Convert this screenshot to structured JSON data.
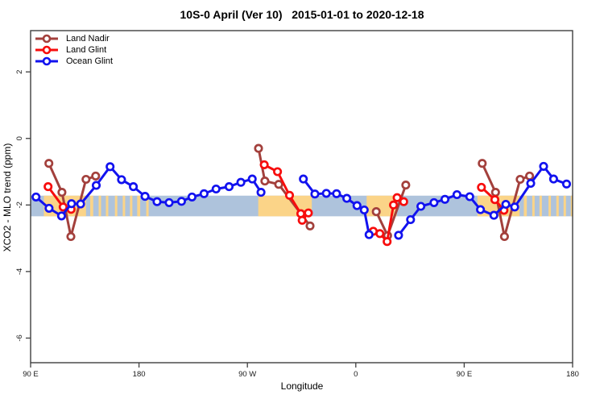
{
  "chart_data": {
    "type": "line",
    "title": "10S-0 April (Ver 10)   2015-01-01 to 2020-12-18",
    "xlabel": "Longitude",
    "ylabel": "XCO2 - MLO trend (ppm)",
    "xlim": [
      90,
      540
    ],
    "ylim": [
      -6.74,
      3.24
    ],
    "grid": false,
    "legend_position": "top-left",
    "x_ticks": [
      {
        "value": 90,
        "label": "90 E"
      },
      {
        "value": 180,
        "label": "180"
      },
      {
        "value": 270,
        "label": "90 W"
      },
      {
        "value": 360,
        "label": "0"
      },
      {
        "value": 450,
        "label": "90 E"
      },
      {
        "value": 540,
        "label": "180"
      }
    ],
    "y_ticks": [
      {
        "value": 2,
        "label": "2"
      },
      {
        "value": 0,
        "label": "0"
      },
      {
        "value": -2,
        "label": "-2"
      },
      {
        "value": -4,
        "label": "-4"
      },
      {
        "value": -6,
        "label": "-6"
      }
    ],
    "reference_band": {
      "y_from": -1.72,
      "y_to": -2.34,
      "color": "#AEC3DC"
    },
    "land_patches_color": "#FBD488",
    "land_patches_lon": [
      [
        101,
        136
      ],
      [
        139.5,
        142
      ],
      [
        146.5,
        148.5
      ],
      [
        152.5,
        154.5
      ],
      [
        160,
        162
      ],
      [
        166.5,
        168.5
      ],
      [
        172.5,
        174.5
      ],
      [
        178.5,
        181
      ],
      [
        186,
        188
      ],
      [
        279,
        323.5
      ],
      [
        369,
        394
      ],
      [
        461,
        496
      ],
      [
        499.5,
        502
      ],
      [
        506.5,
        508.5
      ],
      [
        512.5,
        514.5
      ],
      [
        520,
        522
      ],
      [
        526.5,
        528.5
      ],
      [
        532.5,
        534.5
      ],
      [
        538.5,
        540
      ]
    ],
    "series": [
      {
        "name": "Land Nadir",
        "color": "#A3403C",
        "segments": [
          [
            [
              105.2,
              -0.75
            ],
            [
              116,
              -1.62
            ],
            [
              123.4,
              -2.95
            ],
            [
              136,
              -1.23
            ],
            [
              144,
              -1.13
            ]
          ],
          [
            [
              279.2,
              -0.3
            ],
            [
              284.5,
              -1.28
            ],
            [
              296,
              -1.38
            ],
            [
              322,
              -2.63
            ]
          ],
          [
            [
              377,
              -2.2
            ],
            [
              386.4,
              -2.92
            ],
            [
              401.5,
              -1.4
            ]
          ],
          [
            [
              465,
              -0.75
            ],
            [
              476,
              -1.62
            ],
            [
              483.4,
              -2.95
            ],
            [
              496.5,
              -1.23
            ],
            [
              504.3,
              -1.13
            ]
          ]
        ]
      },
      {
        "name": "Land Glint",
        "color": "#F70D0D",
        "segments": [
          [
            [
              104.5,
              -1.45
            ],
            [
              117,
              -2.06
            ],
            [
              123.6,
              -2.13
            ]
          ],
          [
            [
              284,
              -0.79
            ],
            [
              295,
              -1.0
            ],
            [
              305,
              -1.71
            ],
            [
              314.3,
              -2.26
            ],
            [
              315.5,
              -2.46
            ],
            [
              320.6,
              -2.24
            ]
          ],
          [
            [
              374.5,
              -2.79
            ],
            [
              380,
              -2.86
            ],
            [
              386,
              -3.1
            ],
            [
              391.3,
              -2.0
            ],
            [
              394.3,
              -1.78
            ],
            [
              399.8,
              -1.9
            ]
          ],
          [
            [
              464.3,
              -1.47
            ],
            [
              475.5,
              -1.84
            ],
            [
              483,
              -2.16
            ]
          ]
        ]
      },
      {
        "name": "Ocean Glint",
        "color": "#1212EF",
        "segments": [
          [
            [
              94.5,
              -1.76
            ],
            [
              105.3,
              -2.1
            ],
            [
              115.7,
              -2.33
            ],
            [
              124,
              -1.96
            ],
            [
              131.5,
              -1.97
            ],
            [
              144.5,
              -1.41
            ],
            [
              156,
              -0.85
            ],
            [
              165.5,
              -1.24
            ],
            [
              175.3,
              -1.45
            ],
            [
              185,
              -1.74
            ],
            [
              195,
              -1.9
            ],
            [
              205,
              -1.93
            ],
            [
              215.3,
              -1.89
            ],
            [
              224,
              -1.76
            ],
            [
              234,
              -1.66
            ],
            [
              244,
              -1.52
            ],
            [
              254.8,
              -1.45
            ],
            [
              264.6,
              -1.32
            ],
            [
              274,
              -1.22
            ],
            [
              281.3,
              -1.62
            ]
          ],
          [
            [
              316.5,
              -1.22
            ],
            [
              326,
              -1.67
            ],
            [
              335.5,
              -1.65
            ],
            [
              344,
              -1.66
            ],
            [
              352.5,
              -1.8
            ],
            [
              361,
              -2.02
            ],
            [
              367,
              -2.15
            ],
            [
              371,
              -2.89
            ]
          ],
          [
            [
              395.5,
              -2.91
            ],
            [
              405.5,
              -2.44
            ],
            [
              414,
              -2.04
            ],
            [
              424.9,
              -1.93
            ],
            [
              434,
              -1.83
            ],
            [
              444,
              -1.69
            ],
            [
              454.6,
              -1.75
            ],
            [
              463.5,
              -2.14
            ],
            [
              474.7,
              -2.31
            ],
            [
              484.6,
              -1.98
            ],
            [
              491.9,
              -2.06
            ],
            [
              505.2,
              -1.35
            ],
            [
              515.9,
              -0.84
            ],
            [
              524.2,
              -1.22
            ],
            [
              535,
              -1.37
            ]
          ]
        ]
      }
    ],
    "frame_color": "#3F3F3F",
    "tick_label_color": "#1A1A1A"
  }
}
